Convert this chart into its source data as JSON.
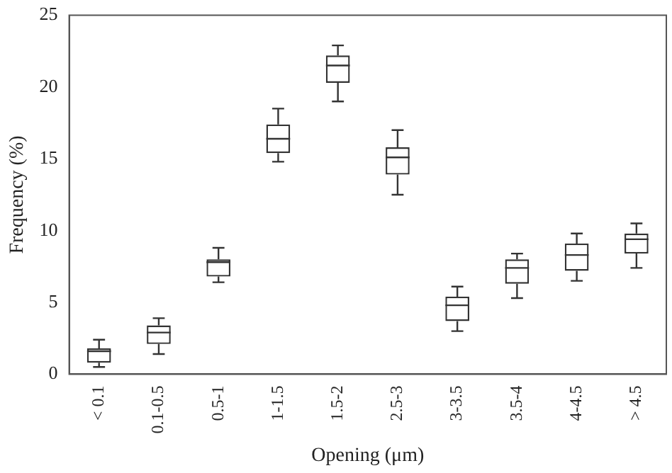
{
  "chart_data": {
    "type": "box",
    "xlabel": "Opening (μm)",
    "ylabel": "Frequency (%)",
    "categories": [
      "< 0.1",
      "0.1-0.5",
      "0.5-1",
      "1-1.5",
      "1.5-2",
      "2.5-3",
      "3-3.5",
      "3.5-4",
      "4-4.5",
      "> 4.5"
    ],
    "boxes": [
      {
        "low": 0.5,
        "q1": 0.8,
        "median": 1.6,
        "q3": 1.8,
        "high": 2.4
      },
      {
        "low": 1.4,
        "q1": 2.1,
        "median": 2.9,
        "q3": 3.4,
        "high": 3.9
      },
      {
        "low": 6.4,
        "q1": 6.8,
        "median": 7.8,
        "q3": 8.0,
        "high": 8.8
      },
      {
        "low": 14.8,
        "q1": 15.4,
        "median": 16.4,
        "q3": 17.4,
        "high": 18.5
      },
      {
        "low": 19.0,
        "q1": 20.3,
        "median": 21.5,
        "q3": 22.2,
        "high": 22.9
      },
      {
        "low": 12.5,
        "q1": 13.9,
        "median": 15.1,
        "q3": 15.8,
        "high": 17.0
      },
      {
        "low": 3.0,
        "q1": 3.7,
        "median": 4.8,
        "q3": 5.4,
        "high": 6.1
      },
      {
        "low": 5.3,
        "q1": 6.3,
        "median": 7.4,
        "q3": 8.0,
        "high": 8.4
      },
      {
        "low": 6.5,
        "q1": 7.2,
        "median": 8.3,
        "q3": 9.1,
        "high": 9.8
      },
      {
        "low": 7.4,
        "q1": 8.4,
        "median": 9.4,
        "q3": 9.8,
        "high": 10.5
      }
    ],
    "color": "#333333",
    "ylim": [
      0,
      25
    ],
    "yticks": [
      0,
      5,
      10,
      15,
      20,
      25
    ],
    "grid": false,
    "legend": false
  }
}
